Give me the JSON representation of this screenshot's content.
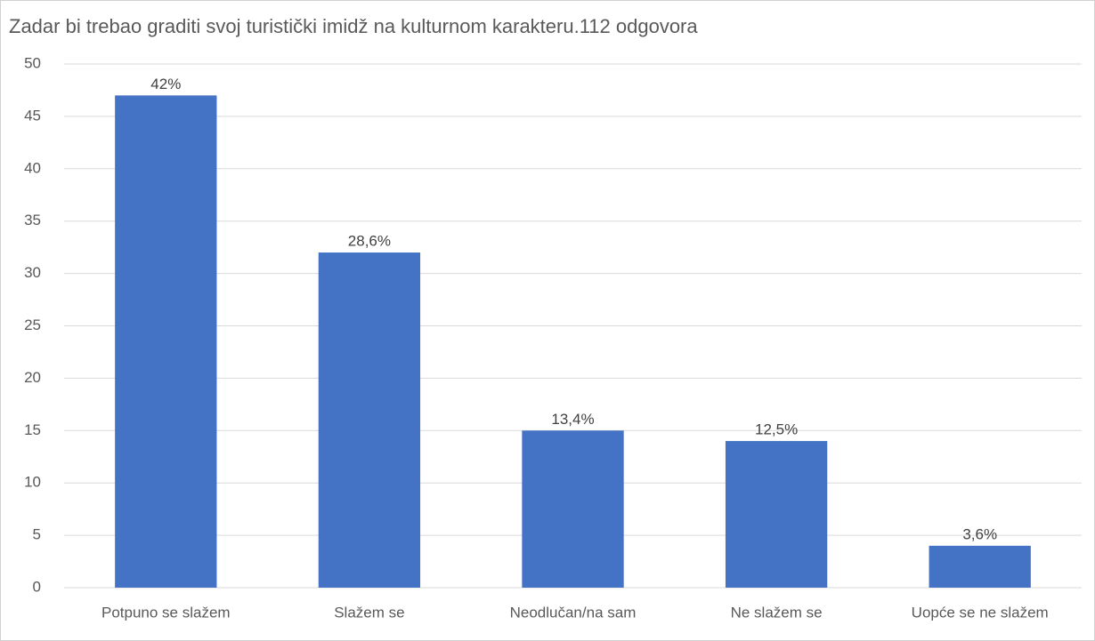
{
  "chart_data": {
    "type": "bar",
    "title": "Zadar bi trebao graditi svoj turistički imidž na kulturnom karakteru.112 odgovora",
    "categories": [
      "Potpuno se slažem",
      "Slažem se",
      "Neodlučan/na sam",
      "Ne slažem se",
      "Uopće se ne slažem"
    ],
    "values": [
      47,
      32,
      15,
      14,
      4
    ],
    "value_labels": [
      "42%",
      "28,6%",
      "13,4%",
      "12,5%",
      "3,6%"
    ],
    "color": "#4472c4",
    "ylim": [
      0,
      50
    ],
    "yticks": [
      0,
      5,
      10,
      15,
      20,
      25,
      30,
      35,
      40,
      45,
      50
    ],
    "grid": true
  }
}
